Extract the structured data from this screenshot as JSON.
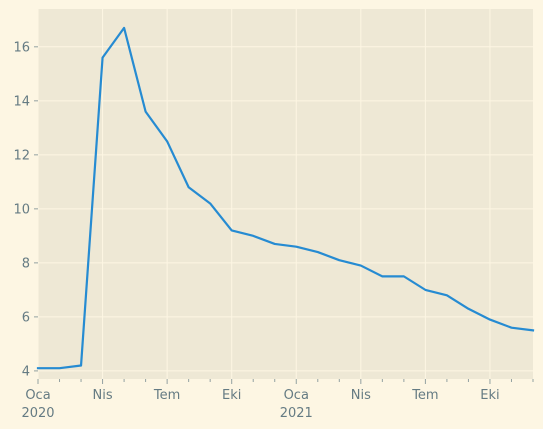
{
  "chart_data": {
    "type": "line",
    "title": "",
    "xlabel": "",
    "ylabel": "",
    "x": [
      "2020-01",
      "2020-02",
      "2020-03",
      "2020-04",
      "2020-05",
      "2020-06",
      "2020-07",
      "2020-08",
      "2020-09",
      "2020-10",
      "2020-11",
      "2020-12",
      "2021-01",
      "2021-02",
      "2021-03",
      "2021-04",
      "2021-05",
      "2021-06",
      "2021-07",
      "2021-08",
      "2021-09",
      "2021-10",
      "2021-11",
      "2021-12"
    ],
    "series": [
      {
        "values": [
          4.1,
          4.1,
          4.2,
          15.6,
          16.7,
          13.6,
          12.5,
          10.8,
          10.2,
          9.2,
          9.0,
          8.7,
          8.6,
          8.4,
          8.1,
          7.9,
          7.5,
          7.5,
          7.0,
          6.8,
          6.3,
          5.9,
          5.6,
          5.5
        ]
      }
    ],
    "xlim": [
      "2020-01",
      "2021-12"
    ],
    "ylim": [
      3.7,
      17.4
    ],
    "yticks": [
      4,
      6,
      8,
      10,
      12,
      14,
      16
    ],
    "xticks": [
      {
        "x": "2020-01",
        "label": "Oca",
        "sublabel": "2020"
      },
      {
        "x": "2020-04",
        "label": "Nis",
        "sublabel": ""
      },
      {
        "x": "2020-07",
        "label": "Tem",
        "sublabel": ""
      },
      {
        "x": "2020-10",
        "label": "Eki",
        "sublabel": ""
      },
      {
        "x": "2021-01",
        "label": "Oca",
        "sublabel": "2021"
      },
      {
        "x": "2021-04",
        "label": "Nis",
        "sublabel": ""
      },
      {
        "x": "2021-07",
        "label": "Tem",
        "sublabel": ""
      },
      {
        "x": "2021-10",
        "label": "Eki",
        "sublabel": ""
      }
    ],
    "grid": true,
    "colors": {
      "line": "#268bd2",
      "background": "#fdf6e3",
      "plot_area": "#eee8d5",
      "grid": "#fdf6e3",
      "text": "#657b83"
    }
  }
}
